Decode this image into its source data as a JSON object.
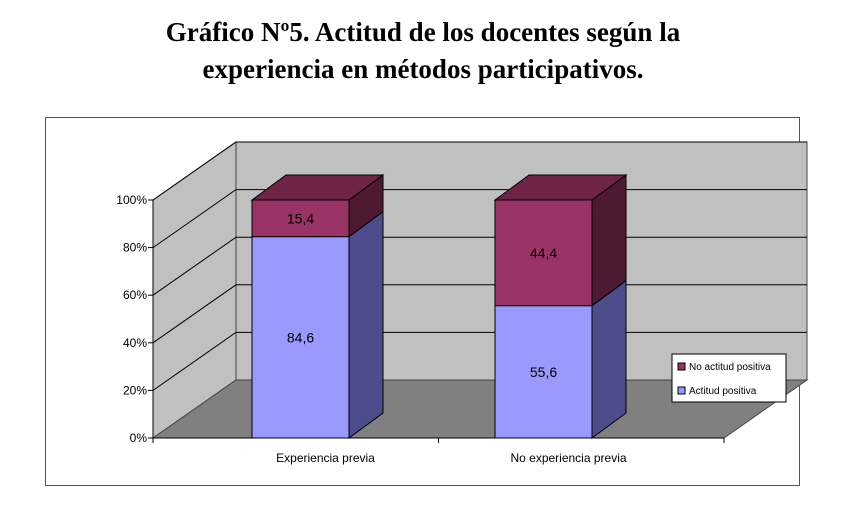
{
  "chart_data": {
    "type": "bar",
    "stacked": true,
    "percent": true,
    "three_d": true,
    "title_line1": "Gráfico Nº5. Actitud de los docentes según la",
    "title_line2": "experiencia en métodos participativos.",
    "categories": [
      "Experiencia previa",
      "No experiencia previa"
    ],
    "series": [
      {
        "name": "Actitud positiva",
        "values": [
          84.6,
          55.6
        ],
        "labels": [
          "84,6",
          "55,6"
        ],
        "color": "#9999ff",
        "side": "#4d4d8c",
        "top": "#7777dd"
      },
      {
        "name": "No actitud positiva",
        "values": [
          15.4,
          44.4
        ],
        "labels": [
          "15,4",
          "44,4"
        ],
        "color": "#993366",
        "side": "#4d1933",
        "top": "#6e2347"
      }
    ],
    "y_ticks": [
      "0%",
      "20%",
      "40%",
      "60%",
      "80%",
      "100%"
    ],
    "ylim": [
      0,
      100
    ],
    "grid": true,
    "legend_position": "right",
    "wall_color": "#c0c0c0",
    "floor_color": "#808080"
  }
}
